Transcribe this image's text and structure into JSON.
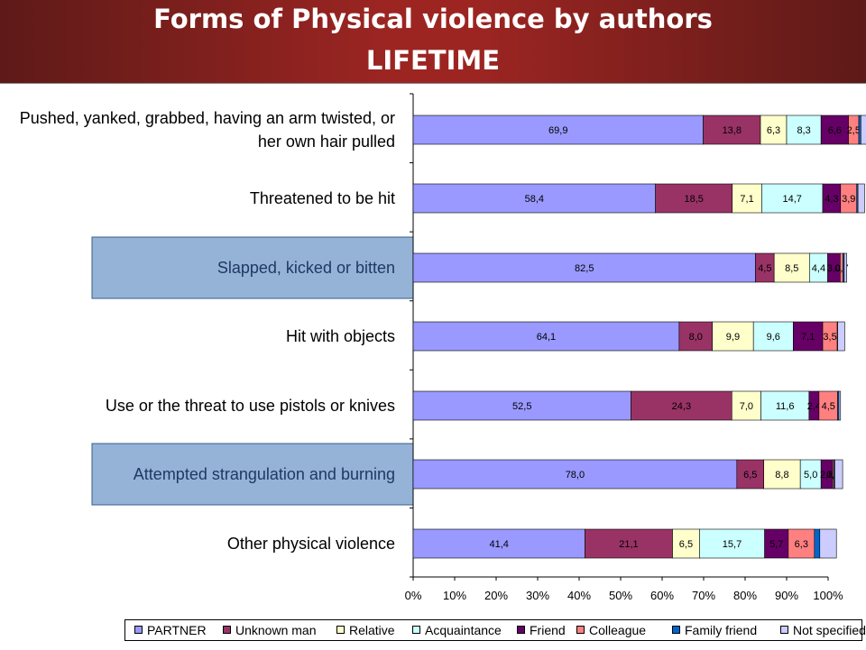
{
  "header": {
    "title_line1": "Forms of Physical violence by authors",
    "title_line2": "LIFETIME"
  },
  "chart_data": {
    "type": "bar",
    "orientation": "horizontal",
    "stacked": true,
    "normalized": true,
    "title": "Forms of Physical violence by authors LIFETIME",
    "xlim": [
      0,
      100
    ],
    "x_ticks": [
      "0%",
      "10%",
      "20%",
      "30%",
      "40%",
      "50%",
      "60%",
      "70%",
      "80%",
      "90%",
      "100%"
    ],
    "legend_position": "bottom",
    "categories": [
      "Pushed, yanked, grabbed, having an arm twisted, or her own hair pulled",
      "Threatened to be hit",
      "Slapped, kicked or bitten",
      "Hit with objects",
      "Use or the threat to use pistols or knives",
      "Attempted strangulation and burning",
      "Other physical violence"
    ],
    "category_label_lines": [
      [
        "Pushed, yanked, grabbed, having an arm twisted, or",
        "her own hair pulled"
      ],
      [
        "Threatened to be hit"
      ],
      [
        "Slapped, kicked or bitten"
      ],
      [
        "Hit with objects"
      ],
      [
        "Use or the threat to use pistols or knives"
      ],
      [
        "Attempted strangulation and burning"
      ],
      [
        "Other physical violence"
      ]
    ],
    "highlighted_categories": [
      2,
      5
    ],
    "series": [
      {
        "name": "PARTNER",
        "color": "#9999ff",
        "values": [
          69.9,
          58.4,
          82.5,
          64.1,
          52.5,
          78.0,
          41.4
        ],
        "labels": [
          "69,9",
          "58,4",
          "82,5",
          "64,1",
          "52,5",
          "78,0",
          "41,4"
        ]
      },
      {
        "name": "Unknown man",
        "color": "#993366",
        "values": [
          13.8,
          18.5,
          4.5,
          8.0,
          24.3,
          6.5,
          21.1
        ],
        "labels": [
          "13,8",
          "18,5",
          "4,5",
          "8,0",
          "24,3",
          "6,5",
          "21,1"
        ]
      },
      {
        "name": "Relative",
        "color": "#ffffcc",
        "values": [
          6.3,
          7.1,
          8.5,
          9.9,
          7.0,
          8.8,
          6.5
        ],
        "labels": [
          "6,3",
          "7,1",
          "8,5",
          "9,9",
          "7,0",
          "8,8",
          "6,5"
        ]
      },
      {
        "name": "Acquaintance",
        "color": "#ccffff",
        "values": [
          8.3,
          14.7,
          4.4,
          9.6,
          11.6,
          5.0,
          15.7
        ],
        "labels": [
          "8,3",
          "14,7",
          "4,4",
          "9,6",
          "11,6",
          "5,0",
          "15,7"
        ]
      },
      {
        "name": "Friend",
        "color": "#660066",
        "values": [
          6.6,
          4.3,
          3.0,
          7.1,
          2.4,
          2.8,
          5.7
        ],
        "labels": [
          "6,6",
          "4,3",
          "3,0",
          "7,1",
          "2,4",
          "2,8",
          "5,7"
        ]
      },
      {
        "name": "Colleague",
        "color": "#ff8080",
        "values": [
          2.5,
          3.9,
          0.7,
          3.5,
          4.5,
          0.3,
          6.3
        ],
        "labels": [
          "2,5",
          "3,9",
          "0,7",
          "3,5",
          "4,5",
          "0,3",
          "6,3"
        ]
      },
      {
        "name": "Family friend",
        "color": "#0066cc",
        "values": [
          0.5,
          0.3,
          0.3,
          0.1,
          0.3,
          0.2,
          1.3
        ],
        "labels": [
          "",
          "",
          "",
          "",
          "",
          "",
          ""
        ]
      },
      {
        "name": "Not specified",
        "color": "#ccccff",
        "values": [
          1.3,
          1.6,
          0.6,
          1.7,
          0.4,
          1.9,
          4.0
        ],
        "labels": [
          "",
          "",
          "",
          "",
          "",
          "",
          ""
        ]
      }
    ]
  }
}
